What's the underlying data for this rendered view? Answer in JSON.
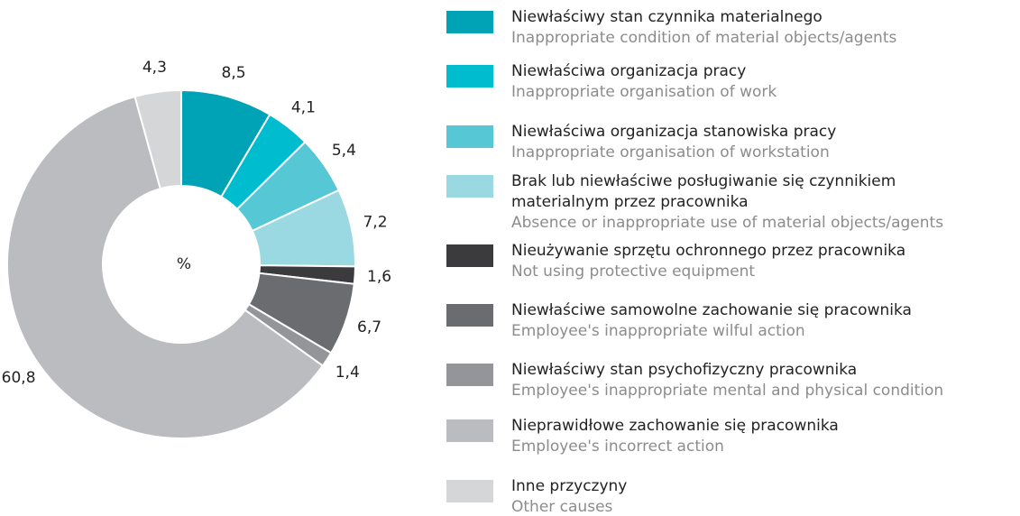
{
  "chart_data": {
    "type": "donut",
    "center_label": "%",
    "categories": [
      "Niewłaściwy stan czynnika materialnego",
      "Niewłaściwa organizacja pracy",
      "Niewłaściwa organizacja stanowiska pracy",
      "Brak lub niewłaściwe posługiwanie się czynnikiem materialnym przez pracownika",
      "Nieużywanie sprzętu ochronnego przez pracownika",
      "Niewłaściwe samowolne zachowanie się pracownika",
      "Niewłaściwy stan psychofizyczny pracownika",
      "Nieprawidłowe zachowanie się pracownika",
      "Inne przyczyny"
    ],
    "categories_en": [
      "Inappropriate condition of material objects/agents",
      "Inappropriate organisation of work",
      "Inappropriate organisation of workstation",
      "Absence or inappropriate use of material objects/agents",
      "Not using protective equipment",
      "Employee's inappropriate wilful action",
      "Employee's inappropriate mental and physical condition",
      "Employee's incorrect action",
      "Other causes"
    ],
    "values": [
      8.5,
      4.1,
      5.4,
      7.2,
      1.6,
      6.7,
      1.4,
      60.8,
      4.3
    ],
    "value_labels": [
      "8,5",
      "4,1",
      "5,4",
      "7,2",
      "1,6",
      "6,7",
      "1,4",
      "60,8",
      "4,3"
    ],
    "colors": [
      "#00a3b5",
      "#00bccf",
      "#55c7d5",
      "#9ad9e2",
      "#3b3b3d",
      "#6b6c6f",
      "#949598",
      "#bbbcbf",
      "#d5d6d8"
    ]
  }
}
